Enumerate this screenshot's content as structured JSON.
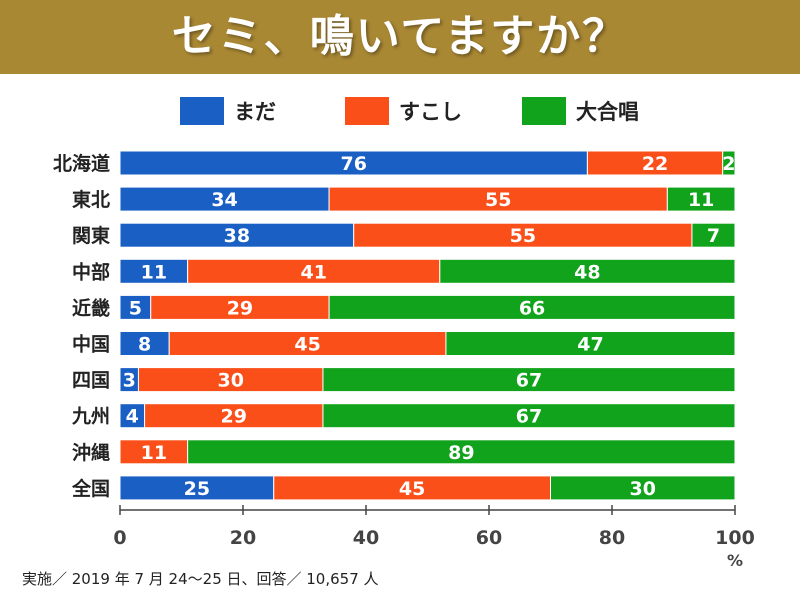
{
  "header": {
    "title": "セミ、鳴いてますか？"
  },
  "colors": {
    "banner": "#a98834",
    "mada": "#1a5fc4",
    "sukoshi": "#fb4f1a",
    "daigassho": "#12a31c"
  },
  "chart_data": {
    "type": "bar",
    "orientation": "horizontal",
    "stacked": true,
    "categories": [
      "北海道",
      "東北",
      "関東",
      "中部",
      "近畿",
      "中国",
      "四国",
      "九州",
      "沖縄",
      "全国"
    ],
    "series": [
      {
        "name": "まだ",
        "color": "#1a5fc4",
        "values": [
          76,
          34,
          38,
          11,
          5,
          8,
          3,
          4,
          0,
          25
        ]
      },
      {
        "name": "すこし",
        "color": "#fb4f1a",
        "values": [
          22,
          55,
          55,
          41,
          29,
          45,
          30,
          29,
          11,
          45
        ]
      },
      {
        "name": "大合唱",
        "color": "#12a31c",
        "values": [
          2,
          11,
          7,
          48,
          66,
          47,
          67,
          67,
          89,
          30
        ]
      }
    ],
    "xlim": [
      0,
      100
    ],
    "xticks": [
      "0",
      "20",
      "40",
      "60",
      "80",
      "100"
    ],
    "xunit": "%",
    "legend_position": "top",
    "grid": false
  },
  "footnote": "実施／ 2019 年 7 月 24〜25 日、回答／ 10,657 人"
}
